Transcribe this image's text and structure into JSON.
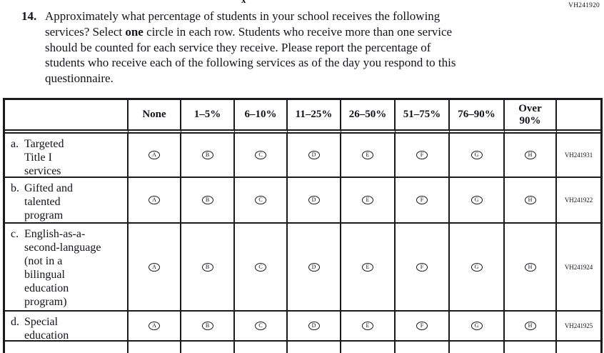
{
  "page": {
    "top_right_code": "VH241920",
    "partial_glyph": "x"
  },
  "question": {
    "number": "14.",
    "lines": [
      [
        {
          "text": "Approximately what percentage of students in your school receives the following",
          "bold": false
        }
      ],
      [
        {
          "text": "services? Select ",
          "bold": false
        },
        {
          "text": "one",
          "bold": true
        },
        {
          "text": " circle in each row. Students who receive more than one service",
          "bold": false
        }
      ],
      [
        {
          "text": "should be counted for each service they receive. Please report the percentage of",
          "bold": false
        }
      ],
      [
        {
          "text": "students who receive each of the following services as of the day you respond to this",
          "bold": false
        }
      ],
      [
        {
          "text": "questionnaire.",
          "bold": false
        }
      ]
    ]
  },
  "table": {
    "column_headers": [
      "None",
      "1–5%",
      "6–10%",
      "11–25%",
      "26–50%",
      "51–75%",
      "76–90%",
      "Over\n90%"
    ],
    "option_letters": [
      "A",
      "B",
      "C",
      "D",
      "E",
      "F",
      "G",
      "H"
    ],
    "rows": [
      {
        "letter": "a.",
        "label_lines": [
          "Targeted",
          "Title I",
          "services"
        ],
        "code": "VH241931"
      },
      {
        "letter": "b.",
        "label_lines": [
          "Gifted and",
          "talented",
          "program"
        ],
        "code": "VH241922"
      },
      {
        "letter": "c.",
        "label_lines": [
          "English-as-a-",
          "second-language",
          "(not in a",
          "bilingual",
          "education",
          "program)"
        ],
        "code": "VH241924"
      },
      {
        "letter": "d.",
        "label_lines": [
          "Special",
          "education"
        ],
        "code": "VH241925"
      }
    ]
  },
  "colors": {
    "text": "#13131c",
    "border": "#1a1a1f",
    "background": "#ffffff"
  }
}
